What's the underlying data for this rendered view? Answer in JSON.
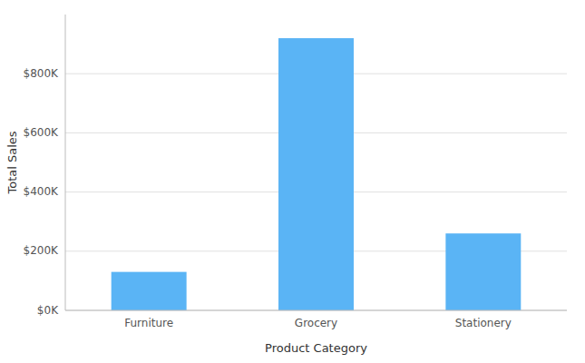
{
  "chart_data": {
    "type": "bar",
    "categories": [
      "Furniture",
      "Grocery",
      "Stationery"
    ],
    "values": [
      130000,
      920000,
      260000
    ],
    "color": "#5ab4f5",
    "xlabel": "Product Category",
    "ylabel": "Total Sales",
    "ylim": [
      0,
      1000000
    ],
    "yticks": [
      {
        "value": 0,
        "label": "$0K"
      },
      {
        "value": 200000,
        "label": "$200K"
      },
      {
        "value": 400000,
        "label": "$400K"
      },
      {
        "value": 600000,
        "label": "$600K"
      },
      {
        "value": 800000,
        "label": "$800K"
      }
    ],
    "grid": true
  }
}
